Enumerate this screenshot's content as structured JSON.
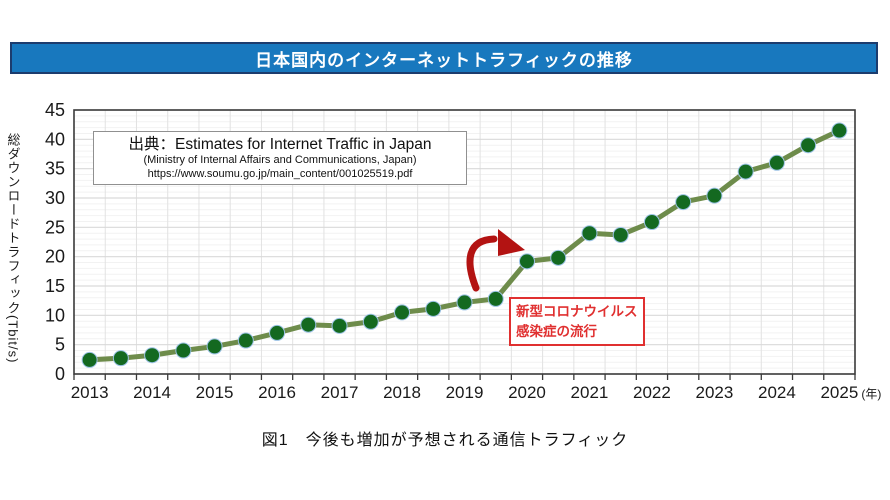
{
  "banner": {
    "title": "日本国内のインターネットトラフィックの推移"
  },
  "source_box": {
    "line1": "出典：Estimates for Internet Traffic in Japan",
    "line2": "(Ministry of Internal Affairs and Communications, Japan)",
    "line3": "https://www.soumu.go.jp/main_content/001025519.pdf"
  },
  "annotation": {
    "line1": "新型コロナウイルス",
    "line2": "感染症の流行"
  },
  "caption": "図1　今後も増加が予想される通信トラフィック",
  "colors": {
    "banner_bg": "#1878be",
    "banner_border": "#1c3c6e",
    "line": "#6e8c4b",
    "marker": "#146920",
    "marker_edge": "#9dc3e6",
    "annotation_red": "#e03030",
    "arrow_red": "#b31312",
    "grid_major": "#d9d9d9",
    "grid_minor": "#f2f2f2",
    "grid_vertical": "#e2e2e2",
    "axis": "#3a3a3a",
    "tick_text": "#1a1a1a"
  },
  "chart_data": {
    "type": "line",
    "title": "日本国内のインターネットトラフィックの推移",
    "ylabel": "総ダウンロードトラフィック(Tbit/s)",
    "x_unit_label": "(年)",
    "grid": true,
    "legend_position": "none",
    "ylim": [
      0,
      45
    ],
    "y_ticks": [
      0,
      5,
      10,
      15,
      20,
      25,
      30,
      35,
      40,
      45
    ],
    "x_tick_labels": [
      "2013",
      "2014",
      "2015",
      "2016",
      "2017",
      "2018",
      "2019",
      "2020",
      "2021",
      "2022",
      "2023",
      "2024",
      "2025"
    ],
    "series": [
      {
        "name": "総ダウンロードトラフィック",
        "x": [
          2013,
          2013.5,
          2014,
          2014.5,
          2015,
          2015.5,
          2016,
          2016.5,
          2017,
          2017.5,
          2018,
          2018.5,
          2019,
          2019.5,
          2020,
          2020.5,
          2021,
          2021.5,
          2022,
          2022.5,
          2023,
          2023.5,
          2024,
          2024.5,
          2025
        ],
        "values": [
          2.4,
          2.7,
          3.2,
          4.0,
          4.7,
          5.7,
          7.0,
          8.4,
          8.2,
          8.9,
          10.5,
          11.1,
          12.2,
          12.8,
          19.2,
          19.8,
          24.0,
          23.7,
          25.9,
          29.3,
          30.4,
          34.5,
          36.0,
          39.0,
          41.5
        ]
      }
    ],
    "annotation_text": "新型コロナウイルス感染症の流行"
  }
}
